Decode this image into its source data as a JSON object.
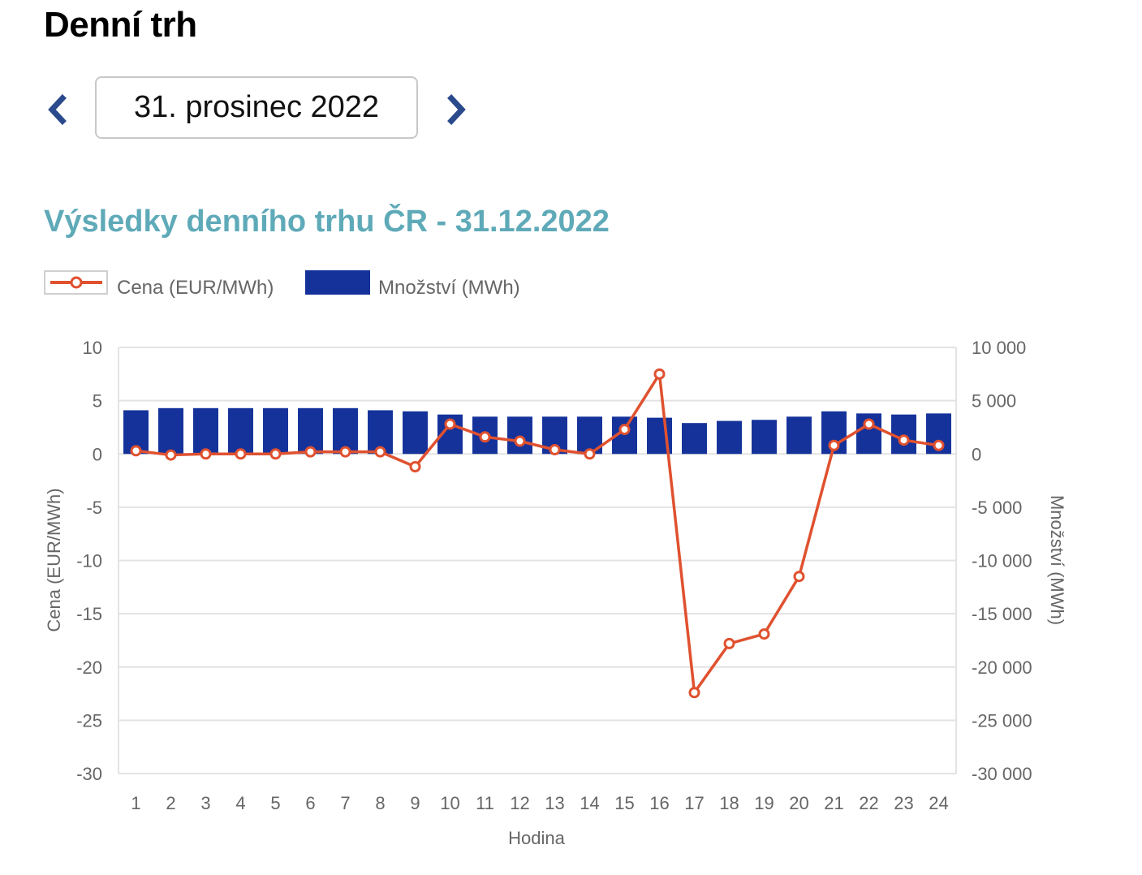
{
  "page": {
    "title": "Denní trh",
    "date_label": "31. prosinec 2022",
    "prev_icon": "chevron-left-icon",
    "next_icon": "chevron-right-icon"
  },
  "colors": {
    "title_accent": "#5faab8",
    "bar": "#14329a",
    "line": "#e0512f",
    "arrow": "#2a4a8c"
  },
  "chart_data": {
    "type": "bar+line",
    "title": "Výsledky denního trhu ČR - 31.12.2022",
    "xlabel": "Hodina",
    "ylabel": "Cena (EUR/MWh)",
    "y2label": "Množství (MWh)",
    "categories": [
      "1",
      "2",
      "3",
      "4",
      "5",
      "6",
      "7",
      "8",
      "9",
      "10",
      "11",
      "12",
      "13",
      "14",
      "15",
      "16",
      "17",
      "18",
      "19",
      "20",
      "21",
      "22",
      "23",
      "24"
    ],
    "ylim": [
      -30,
      10
    ],
    "yticks": [
      "10",
      "5",
      "0",
      "-5",
      "-10",
      "-15",
      "-20",
      "-25",
      "-30"
    ],
    "y2lim": [
      -30000,
      10000
    ],
    "y2ticks": [
      "10 000",
      "5 000",
      "0",
      "-5 000",
      "-10 000",
      "-15 000",
      "-20 000",
      "-25 000",
      "-30 000"
    ],
    "grid": true,
    "legend": "top-left",
    "series": [
      {
        "name": "Cena (EUR/MWh)",
        "type": "line",
        "axis": "left",
        "values": [
          0.3,
          -0.1,
          0.0,
          0.0,
          0.0,
          0.2,
          0.2,
          0.2,
          -1.2,
          2.8,
          1.6,
          1.2,
          0.4,
          0.0,
          2.3,
          7.5,
          -22.4,
          -17.8,
          -16.9,
          -11.5,
          0.8,
          2.8,
          1.3,
          0.8
        ]
      },
      {
        "name": "Množství (MWh)",
        "type": "bar",
        "axis": "right",
        "values": [
          4100,
          4300,
          4300,
          4300,
          4300,
          4300,
          4300,
          4100,
          4000,
          3700,
          3500,
          3500,
          3500,
          3500,
          3500,
          3400,
          2900,
          3100,
          3200,
          3500,
          4000,
          3800,
          3700,
          3800
        ]
      }
    ]
  }
}
